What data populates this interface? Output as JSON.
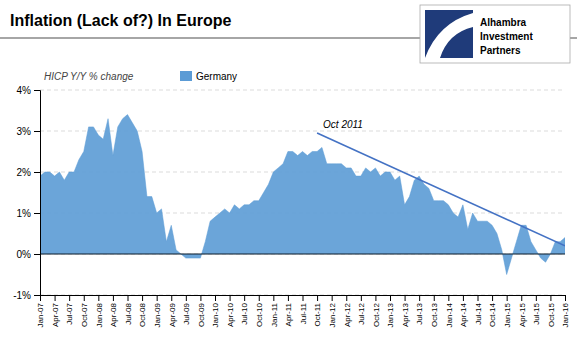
{
  "chart_data": {
    "type": "area",
    "title": "Inflation (Lack of?) In Europe",
    "subtitle": "HICP Y/Y % change",
    "annotation": "Oct 2011",
    "categories": [
      "Jan-07",
      null,
      null,
      "Apr-07",
      null,
      null,
      "Jul-07",
      null,
      null,
      "Oct-07",
      null,
      null,
      "Jan-08",
      null,
      null,
      "Apr-08",
      null,
      null,
      "Jul-08",
      null,
      null,
      "Oct-08",
      null,
      null,
      "Jan-09",
      null,
      null,
      "Apr-09",
      null,
      null,
      "Jul-09",
      null,
      null,
      "Oct-09",
      null,
      null,
      "Jan-10",
      null,
      null,
      "Apr-10",
      null,
      null,
      "Jul-10",
      null,
      null,
      "Oct-10",
      null,
      null,
      "Jan-11",
      null,
      null,
      "Apr-11",
      null,
      null,
      "Jul-11",
      null,
      null,
      "Oct-11",
      null,
      null,
      "Jan-12",
      null,
      null,
      "Apr-12",
      null,
      null,
      "Jul-12",
      null,
      null,
      "Oct-12",
      null,
      null,
      "Jan-13",
      null,
      null,
      "Apr-13",
      null,
      null,
      "Jul-13",
      null,
      null,
      "Oct-13",
      null,
      null,
      "Jan-14",
      null,
      null,
      "Apr-14",
      null,
      null,
      "Jul-14",
      null,
      null,
      "Oct-14",
      null,
      null,
      "Jan-15",
      null,
      null,
      "Apr-15",
      null,
      null,
      "Jul-15",
      null,
      null,
      "Oct-15",
      null,
      null,
      "Jan-16"
    ],
    "series": [
      {
        "name": "Germany",
        "color": "#5B9BD5",
        "values": [
          0.019,
          0.02,
          0.02,
          0.019,
          0.02,
          0.018,
          0.02,
          0.02,
          0.023,
          0.025,
          0.031,
          0.031,
          0.029,
          0.028,
          0.033,
          0.024,
          0.031,
          0.033,
          0.034,
          0.032,
          0.03,
          0.025,
          0.014,
          0.014,
          0.01,
          0.011,
          0.003,
          0.007,
          0.001,
          0.0,
          -0.001,
          -0.001,
          -0.001,
          -0.001,
          0.003,
          0.008,
          0.009,
          0.01,
          0.011,
          0.01,
          0.012,
          0.011,
          0.012,
          0.012,
          0.013,
          0.013,
          0.015,
          0.017,
          0.02,
          0.021,
          0.022,
          0.025,
          0.025,
          0.024,
          0.025,
          0.024,
          0.025,
          0.025,
          0.026,
          0.022,
          0.022,
          0.022,
          0.022,
          0.021,
          0.021,
          0.019,
          0.019,
          0.021,
          0.02,
          0.021,
          0.019,
          0.02,
          0.02,
          0.018,
          0.019,
          0.012,
          0.014,
          0.018,
          0.019,
          0.017,
          0.016,
          0.013,
          0.013,
          0.013,
          0.012,
          0.01,
          0.009,
          0.012,
          0.006,
          0.01,
          0.008,
          0.008,
          0.008,
          0.007,
          0.005,
          0.001,
          -0.005,
          -0.001,
          0.003,
          0.007,
          0.007,
          0.003,
          0.001,
          -0.001,
          -0.002,
          0.0,
          0.003,
          0.003,
          0.004
        ]
      }
    ],
    "ylim": [
      -0.01,
      0.04
    ],
    "yticks": [
      {
        "value": -0.01,
        "label": "-1%"
      },
      {
        "value": 0.0,
        "label": "0%"
      },
      {
        "value": 0.01,
        "label": "1%"
      },
      {
        "value": 0.02,
        "label": "2%"
      },
      {
        "value": 0.03,
        "label": "3%"
      },
      {
        "value": 0.04,
        "label": "4%"
      }
    ],
    "grid": true,
    "legend": "upper left",
    "trendline": {
      "x": [
        57,
        108
      ],
      "values": [
        0.0295,
        0.002
      ],
      "color": "#4472C4"
    },
    "logo": {
      "texts": [
        "Alhambra",
        "Investment",
        "Partners"
      ],
      "color": "#1F3B7A"
    }
  }
}
